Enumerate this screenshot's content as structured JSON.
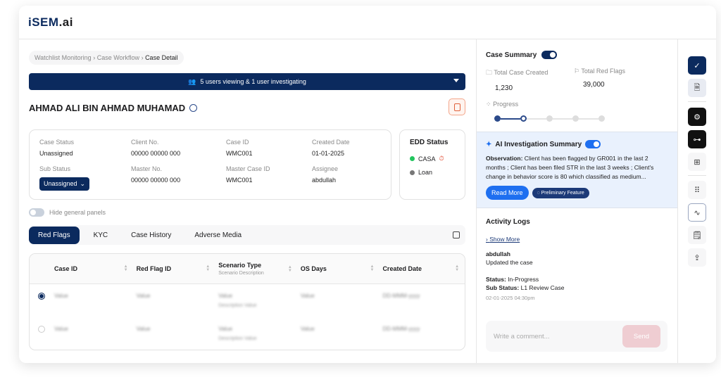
{
  "app": {
    "logo_prefix": "iSEM",
    "logo_suffix": ".ai"
  },
  "breadcrumb": [
    "Watchlist Monitoring",
    "Case Workflow",
    "Case Detail"
  ],
  "banner": {
    "text": "5 users viewing & 1 user investigating"
  },
  "client": {
    "name": "AHMAD ALI BIN AHMAD MUHAMAD"
  },
  "info": {
    "case_status_label": "Case Status",
    "case_status": "Unassigned",
    "client_no_label": "Client No.",
    "client_no": "00000 00000 000",
    "case_id_label": "Case ID",
    "case_id": "WMC001",
    "created_label": "Created Date",
    "created": "01-01-2025",
    "sub_status_label": "Sub Status",
    "sub_status": "Unassigned",
    "master_no_label": "Master No.",
    "master_no": "00000 00000 000",
    "master_case_label": "Master Case ID",
    "master_case": "WMC001",
    "assignee_label": "Assignee",
    "assignee": "abdullah"
  },
  "edd": {
    "title": "EDD Status",
    "items": [
      {
        "label": "CASA",
        "color": "#22c55e"
      },
      {
        "label": "Loan",
        "color": "#777777"
      }
    ]
  },
  "hide_panels": {
    "label": "Hide general panels",
    "on": false
  },
  "tabs": [
    {
      "label": "Red Flags",
      "active": true
    },
    {
      "label": "KYC"
    },
    {
      "label": "Case History"
    },
    {
      "label": "Adverse Media"
    }
  ],
  "table": {
    "columns": [
      "Case ID",
      "Red Flag ID",
      "Scenario Type",
      "OS Days",
      "Created Date"
    ],
    "scenario_sub": "Scenario Description",
    "rows": [
      {
        "selected": true,
        "case_id": "Value",
        "red_flag_id": "Value",
        "scenario": "Value",
        "desc": "Description Value",
        "os_days": "Value",
        "date": "DD-MMM-yyyy"
      },
      {
        "selected": false,
        "case_id": "Value",
        "red_flag_id": "Value",
        "scenario": "Value",
        "desc": "Description Value",
        "os_days": "Value",
        "date": "DD-MMM-yyyy"
      }
    ]
  },
  "summary": {
    "title": "Case Summary",
    "toggle_on": true,
    "total_case_label": "Total Case Created",
    "total_case": "1,230",
    "total_flags_label": "Total Red Flags",
    "total_flags": "39,000",
    "progress_label": "Progress",
    "progress_steps": 5,
    "progress_current": 2
  },
  "ai": {
    "title": "AI Investigation Summary",
    "toggle_on": true,
    "obs_label": "Observation:",
    "obs_text": " Client has been flagged by GR001 in the last 2 months ; Client has been filed STR in the last 3 weeks ; Client's change in behavior score is 80 which classified as medium...",
    "read_more": "Read More",
    "preliminary": "Preliminary Feature"
  },
  "activity": {
    "title": "Activity Logs",
    "show_more": "Show More",
    "user": "abdullah",
    "action": "Updated the case",
    "status_label": "Status:",
    "status": " In-Progress",
    "sub_status_label": "Sub Status:",
    "sub_status": " L1 Review Case",
    "timestamp": "02-01-2025 04:30pm"
  },
  "comment": {
    "placeholder": "Write a comment...",
    "send": "Send"
  },
  "colors": {
    "primary": "#0b2a5e",
    "accent": "#1e6ff0",
    "send_disabled": "#efcdd2"
  }
}
